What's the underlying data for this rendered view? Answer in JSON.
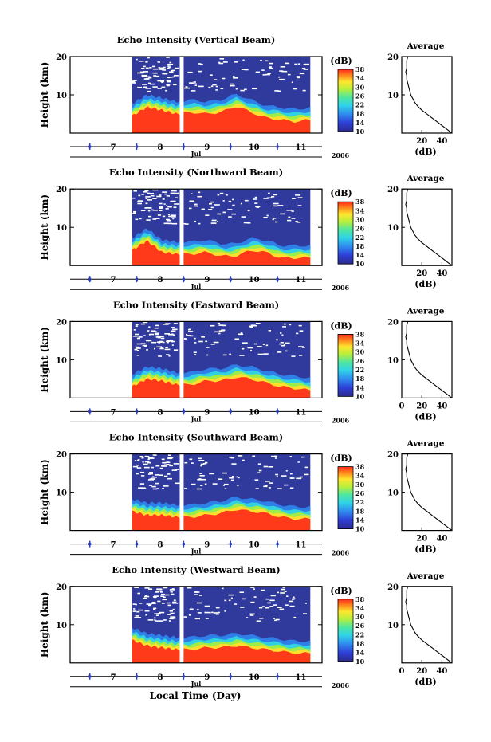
{
  "chart_data": {
    "type": "heatmap",
    "panels": [
      {
        "title": "Echo Intensity (Vertical Beam)",
        "ylabel": "Height (km)",
        "ylim": [
          0,
          20
        ],
        "yticks": [
          10,
          20
        ],
        "boundary_km": [
          7.5,
          9.8,
          9.0,
          8.0,
          8.5,
          8.0,
          8.5,
          10.0,
          8.5,
          7.0,
          6.5,
          6.0,
          6.5
        ],
        "avg_xticks": [
          20,
          40
        ]
      },
      {
        "title": "Echo Intensity (Northward Beam)",
        "ylabel": "Height (km)",
        "ylim": [
          0,
          20
        ],
        "yticks": [
          10,
          20
        ],
        "boundary_km": [
          7.0,
          9.5,
          6.5,
          6.0,
          6.0,
          6.5,
          5.5,
          5.5,
          7.0,
          6.5,
          5.0,
          5.0,
          5.0
        ],
        "avg_xticks": [
          20,
          40
        ]
      },
      {
        "title": "Echo Intensity (Eastward Beam)",
        "ylabel": "Height (km)",
        "ylim": [
          0,
          20
        ],
        "yticks": [
          10,
          20
        ],
        "boundary_km": [
          6.0,
          8.0,
          7.5,
          6.5,
          6.5,
          7.5,
          7.5,
          8.5,
          8.0,
          7.0,
          6.0,
          5.5,
          5.0
        ],
        "avg_xticks": [
          0,
          20,
          40
        ]
      },
      {
        "title": "Echo Intensity (Southward Beam)",
        "ylabel": "Height (km)",
        "ylim": [
          0,
          20
        ],
        "yticks": [
          10,
          20
        ],
        "boundary_km": [
          8.0,
          7.0,
          7.0,
          6.5,
          6.5,
          7.0,
          7.5,
          8.5,
          8.0,
          7.5,
          6.5,
          6.0,
          6.0
        ],
        "avg_xticks": [
          20,
          40
        ]
      },
      {
        "title": "Echo Intensity (Westward Beam)",
        "ylabel": "Height (km)",
        "ylim": [
          0,
          20
        ],
        "yticks": [
          10,
          20
        ],
        "boundary_km": [
          9.0,
          7.5,
          7.0,
          6.5,
          6.5,
          7.0,
          7.0,
          7.5,
          7.0,
          6.5,
          6.0,
          5.5,
          5.5
        ],
        "avg_xticks": [
          0,
          20,
          40
        ]
      }
    ],
    "x_day_ticks": [
      "7",
      "8",
      "9",
      "10",
      "11"
    ],
    "month_label": "Jul",
    "year_label": "2006",
    "xlabel": "Local Time (Day)",
    "data_start_day": 7.4,
    "data_gap_day": 8.45,
    "data_end_day": 11.2,
    "colorbar": {
      "unit": "(dB)",
      "ticks": [
        10,
        14,
        18,
        22,
        26,
        30,
        34,
        38
      ],
      "range": [
        10,
        38
      ]
    },
    "average": {
      "title": "Average",
      "xlabel": "(dB)",
      "xlim": [
        0,
        50
      ],
      "ylim": [
        0,
        20
      ],
      "profile": [
        [
          50,
          0
        ],
        [
          45,
          1
        ],
        [
          40,
          2
        ],
        [
          35,
          3
        ],
        [
          30,
          4
        ],
        [
          25,
          5
        ],
        [
          20,
          6
        ],
        [
          16,
          7
        ],
        [
          13,
          8
        ],
        [
          11,
          9
        ],
        [
          9,
          10
        ],
        [
          8,
          11
        ],
        [
          7,
          12
        ],
        [
          6,
          13
        ],
        [
          5,
          14
        ],
        [
          5,
          15
        ],
        [
          4,
          16
        ],
        [
          5,
          17
        ],
        [
          5,
          18
        ],
        [
          5,
          19
        ],
        [
          6,
          20
        ]
      ]
    }
  }
}
